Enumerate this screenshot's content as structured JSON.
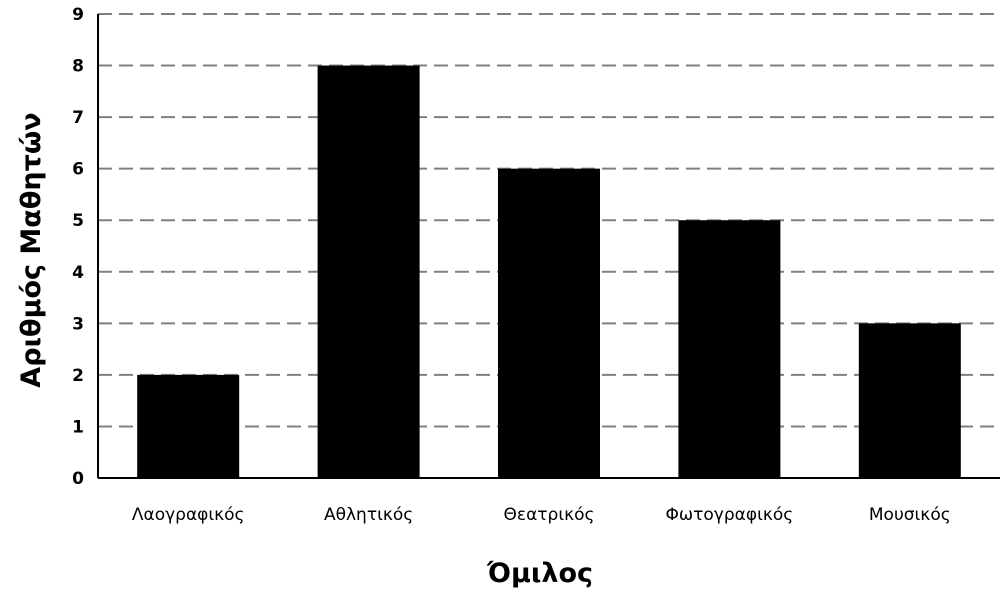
{
  "chart_data": {
    "type": "bar",
    "categories": [
      "Λαογραφικός",
      "Αθλητικός",
      "Θεατρικός",
      "Φωτογραφικός",
      "Μουσικός"
    ],
    "values": [
      2,
      8,
      6,
      5,
      3
    ],
    "xlabel": "Όμιλος",
    "ylabel": "Αριθμός Μαθητών",
    "ylim": [
      0,
      9
    ],
    "yticks": [
      0,
      1,
      2,
      3,
      4,
      5,
      6,
      7,
      8,
      9
    ],
    "grid": true,
    "bar_color": "#000000",
    "grid_color": "#808080"
  }
}
